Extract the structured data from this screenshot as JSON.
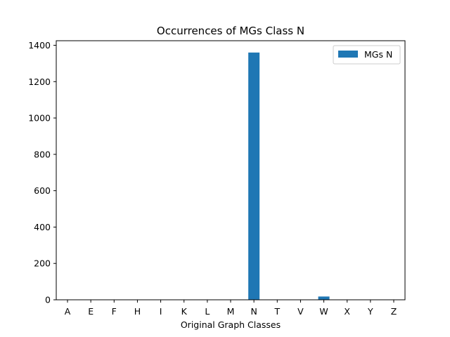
{
  "chart_data": {
    "type": "bar",
    "title": "Occurrences of MGs Class N",
    "xlabel": "Original Graph Classes",
    "ylabel": "",
    "categories": [
      "A",
      "E",
      "F",
      "H",
      "I",
      "K",
      "L",
      "M",
      "N",
      "T",
      "V",
      "W",
      "X",
      "Y",
      "Z"
    ],
    "series": [
      {
        "name": "MGs N",
        "color": "#1f77b4",
        "values": [
          0,
          0,
          0,
          0,
          0,
          0,
          0,
          0,
          1360,
          0,
          0,
          18,
          0,
          0,
          0
        ]
      }
    ],
    "ylim": [
      0,
      1425
    ],
    "yticks": [
      0,
      200,
      400,
      600,
      800,
      1000,
      1200,
      1400
    ],
    "grid": false,
    "legend_position": "top-right"
  }
}
